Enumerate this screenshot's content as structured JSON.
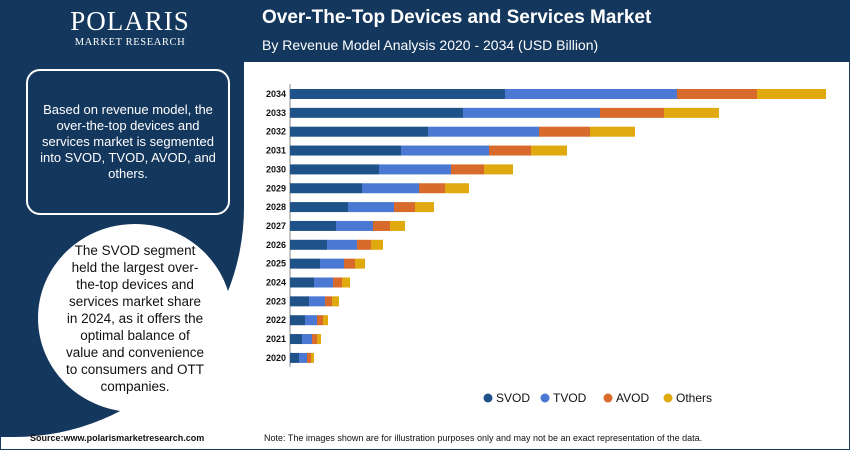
{
  "brand": {
    "name": "POLARIS",
    "sub": "MARKET RESEARCH"
  },
  "header": {
    "title": "Over-The-Top Devices and Services Market",
    "subtitle": "By Revenue Model Analysis 2020 - 2034 (USD Billion)"
  },
  "panel": {
    "box1": "Based on revenue model, the over-the-top devices and services market is segmented into SVOD, TVOD, AVOD, and others.",
    "box2": "The SVOD segment held the largest over-the-top devices and services market share in 2024, as it offers the optimal balance of value and convenience to consumers and OTT companies."
  },
  "footer": {
    "source": "Source:www.polarismarketresearch.com",
    "note": "Note: The images shown are for illustration purposes only and may not be an exact representation of the data."
  },
  "colors": {
    "navy": "#14375e",
    "svod": "#1f5289",
    "tvod": "#4a78d2",
    "avod": "#d86a2c",
    "others": "#e0a90f"
  },
  "chart_data": {
    "type": "bar",
    "orientation": "horizontal",
    "stacked": true,
    "title": "Over-The-Top Devices and Services Market",
    "subtitle": "By Revenue Model Analysis 2020 - 2034 (USD Billion)",
    "categories": [
      "2034",
      "2033",
      "2032",
      "2031",
      "2030",
      "2029",
      "2028",
      "2027",
      "2026",
      "2025",
      "2024",
      "2023",
      "2022",
      "2021",
      "2020"
    ],
    "series": [
      {
        "name": "SVOD",
        "color": "#1f5289",
        "values": [
          215,
          173,
          138,
          111,
          89,
          72,
          58,
          46,
          37,
          30,
          24,
          19,
          15,
          12,
          9
        ]
      },
      {
        "name": "TVOD",
        "color": "#4a78d2",
        "values": [
          172,
          137,
          111,
          88,
          72,
          57,
          46,
          37,
          30,
          24,
          19,
          16,
          12,
          10,
          8
        ]
      },
      {
        "name": "AVOD",
        "color": "#d86a2c",
        "values": [
          80,
          64,
          51,
          42,
          33,
          26,
          21,
          17,
          14,
          11,
          9,
          7,
          6,
          5,
          4
        ]
      },
      {
        "name": "Others",
        "color": "#e0a90f",
        "values": [
          69,
          55,
          45,
          36,
          29,
          24,
          19,
          15,
          12,
          10,
          8,
          7,
          5,
          4,
          3
        ]
      }
    ],
    "xlim": [
      0,
      540
    ],
    "grid": false,
    "legend": "bottom"
  }
}
